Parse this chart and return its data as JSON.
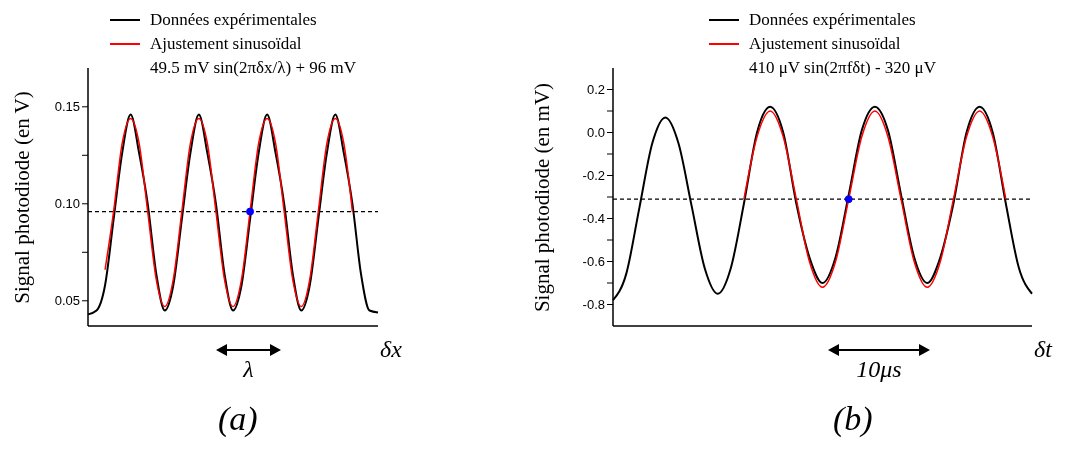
{
  "chart_data": [
    {
      "type": "line",
      "ylabel": "Signal photodiode (en V)",
      "xlabel": "δx",
      "legend": "top",
      "tick_labels": "y",
      "annotations": [
        "49.5 mV sin(2πδx/λ) + 96 mV",
        "λ",
        "(a)"
      ],
      "categories": [
        null,
        null,
        null,
        null,
        null,
        null,
        null,
        null,
        null,
        null,
        null,
        null,
        null,
        null,
        null,
        null,
        null,
        null,
        null,
        null,
        null,
        null,
        null,
        null,
        null,
        null,
        null,
        null,
        null,
        null,
        null,
        null,
        null,
        null,
        null
      ],
      "ylim": [
        0.037,
        0.17
      ],
      "yticks": [
        {
          "value": 0.05,
          "label": "0.05"
        },
        {
          "value": 0.075,
          "label": null
        },
        {
          "value": 0.1,
          "label": "0.10"
        },
        {
          "value": 0.125,
          "label": null
        },
        {
          "value": 0.15,
          "label": "0.15"
        }
      ],
      "ref_lines": [
        {
          "axis": "y",
          "value": 0.096,
          "color": "#000000",
          "line_style": "dashed"
        }
      ],
      "series": [
        {
          "name": "Données expérimentales",
          "color": "#000000",
          "values": [
            0.043,
            0.045,
            0.058,
            0.092,
            0.126,
            0.146,
            0.126,
            0.1,
            0.064,
            0.045,
            0.058,
            0.092,
            0.126,
            0.146,
            0.126,
            0.1,
            0.064,
            0.045,
            0.058,
            0.092,
            0.126,
            0.146,
            0.126,
            0.1,
            0.064,
            0.045,
            0.058,
            0.092,
            0.126,
            0.146,
            0.126,
            0.1,
            0.064,
            0.045,
            0.044
          ]
        },
        {
          "name": "Ajustement sinusoïdal",
          "color": "#ff0000",
          "values": [
            null,
            null,
            0.066,
            0.096,
            0.131,
            0.144,
            0.131,
            0.096,
            0.061,
            0.047,
            0.061,
            0.096,
            0.131,
            0.144,
            0.131,
            0.096,
            0.061,
            0.047,
            0.061,
            0.096,
            0.131,
            0.144,
            0.131,
            0.096,
            0.061,
            0.047,
            0.061,
            0.096,
            0.131,
            0.144,
            0.131,
            0.096,
            null,
            null,
            null
          ]
        },
        {
          "type": "scatter",
          "marker": "circle",
          "color": "#0000ff",
          "values": [
            null,
            null,
            null,
            null,
            null,
            null,
            null,
            null,
            null,
            null,
            null,
            null,
            null,
            null,
            null,
            null,
            null,
            null,
            null,
            0.096,
            null,
            null,
            null,
            null,
            null,
            null,
            null,
            null,
            null,
            null,
            null,
            null,
            null,
            null,
            null
          ]
        }
      ]
    },
    {
      "type": "line",
      "ylabel": "Signal photodiode (en mV)",
      "xlabel": "δt",
      "legend": "top",
      "tick_labels": "y",
      "annotations": [
        "410 μV sin(2πfδt) - 320 μV",
        "10μs",
        "(b)"
      ],
      "categories": [
        null,
        null,
        null,
        null,
        null,
        null,
        null,
        null,
        null,
        null,
        null,
        null,
        null,
        null,
        null,
        null,
        null,
        null,
        null,
        null,
        null,
        null,
        null,
        null,
        null,
        null,
        null,
        null,
        null,
        null,
        null,
        null,
        null
      ],
      "ylim": [
        -0.9,
        0.3
      ],
      "yticks": [
        {
          "value": -0.8,
          "label": "-0.8"
        },
        {
          "value": -0.7,
          "label": null
        },
        {
          "value": -0.6,
          "label": "-0.6"
        },
        {
          "value": -0.5,
          "label": null
        },
        {
          "value": -0.4,
          "label": "-0.4"
        },
        {
          "value": -0.3,
          "label": null
        },
        {
          "value": -0.2,
          "label": "-0.2"
        },
        {
          "value": -0.1,
          "label": null
        },
        {
          "value": 0,
          "label": "0.0"
        },
        {
          "value": 0.1,
          "label": null
        },
        {
          "value": 0.2,
          "label": "0.2"
        }
      ],
      "ref_lines": [
        {
          "axis": "y",
          "value": -0.31,
          "color": "#000000",
          "line_style": "dashed"
        }
      ],
      "series": [
        {
          "name": "Données expérimentales",
          "color": "#000000",
          "values": [
            -0.78,
            -0.66,
            -0.355,
            -0.05,
            0.07,
            -0.05,
            -0.34,
            -0.63,
            -0.75,
            -0.63,
            -0.33,
            0.0,
            0.12,
            0.0,
            -0.33,
            -0.58,
            -0.7,
            -0.58,
            -0.29,
            0.01,
            0.12,
            0.01,
            -0.29,
            -0.58,
            -0.7,
            -0.58,
            -0.33,
            0.0,
            0.12,
            0.0,
            -0.33,
            -0.63,
            -0.75
          ]
        },
        {
          "name": "Ajustement sinusoïdal",
          "color": "#ff0000",
          "values": [
            null,
            null,
            null,
            null,
            null,
            null,
            null,
            null,
            null,
            null,
            -0.31,
            -0.02,
            0.1,
            -0.02,
            -0.31,
            -0.6,
            -0.72,
            -0.6,
            -0.31,
            -0.02,
            0.1,
            -0.02,
            -0.31,
            -0.6,
            -0.72,
            -0.6,
            -0.31,
            -0.02,
            0.1,
            -0.02,
            -0.31,
            null,
            null
          ]
        },
        {
          "type": "scatter",
          "marker": "circle",
          "color": "#0000ff",
          "values": [
            null,
            null,
            null,
            null,
            null,
            null,
            null,
            null,
            null,
            null,
            null,
            null,
            null,
            null,
            null,
            null,
            null,
            null,
            -0.31,
            null,
            null,
            null,
            null,
            null,
            null,
            null,
            null,
            null,
            null,
            null,
            null,
            null,
            null
          ]
        }
      ]
    }
  ]
}
